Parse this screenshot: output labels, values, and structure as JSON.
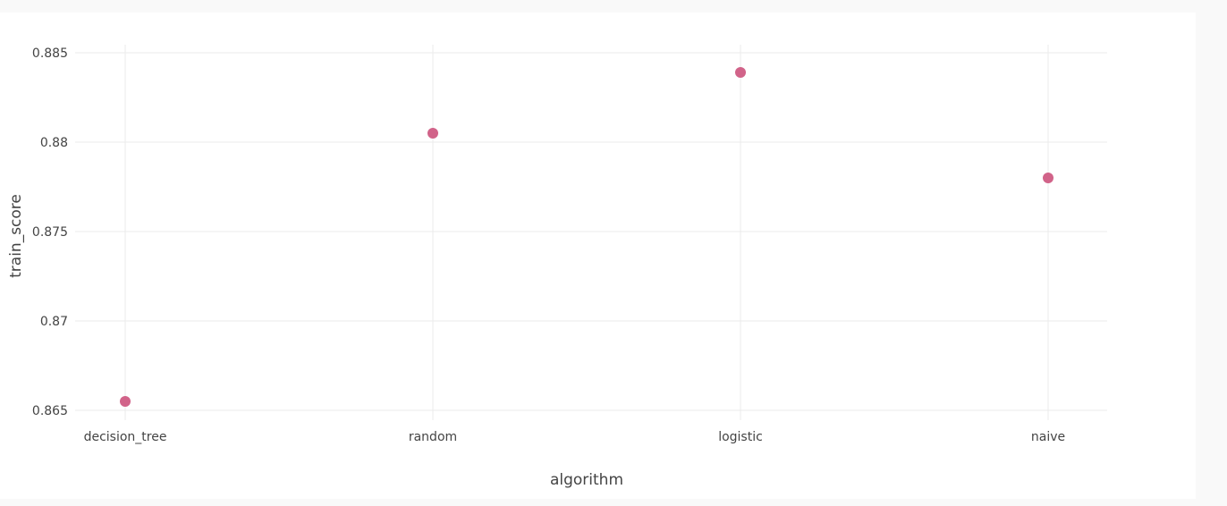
{
  "chart_data": {
    "type": "scatter",
    "title": "",
    "xlabel": "algorithm",
    "ylabel": "train_score",
    "categories": [
      "decision_tree",
      "random",
      "logistic",
      "naive"
    ],
    "series": [
      {
        "values": [
          0.8655,
          0.8805,
          0.8839,
          0.878
        ]
      }
    ],
    "ylim": [
      0.8645,
      0.8855
    ],
    "yticks": [
      0.865,
      0.87,
      0.875,
      0.88,
      0.885
    ],
    "ytick_labels": [
      "0.865",
      "0.87",
      "0.875",
      "0.88",
      "0.885"
    ],
    "grid": true,
    "legend": "none",
    "marker_color": "#d16389"
  }
}
